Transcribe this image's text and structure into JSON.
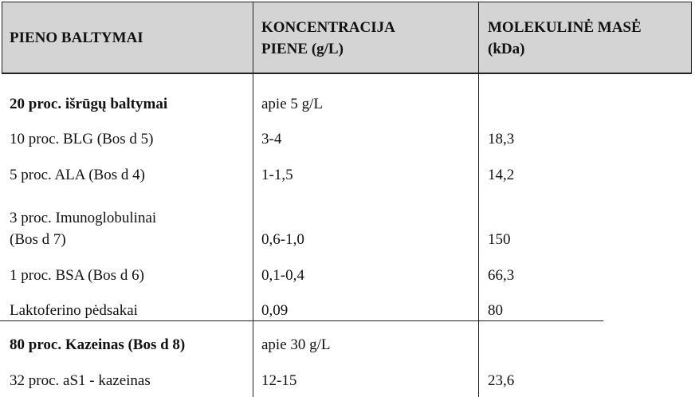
{
  "table": {
    "header": [
      "PIENO BALTYMAI",
      "KONCENTRACIJA\nPIENE (g/L)",
      "MOLEKULINĖ  MASĖ\n(kDa)"
    ],
    "rows": [
      [
        "20 proc. išrūgų baltymai",
        "apie 5 g/L",
        ""
      ],
      [
        "10 proc. BLG (Bos d 5)",
        "3-4",
        "18,3"
      ],
      [
        "5 proc. ALA (Bos d 4)",
        "1-1,5",
        "14,2"
      ],
      [
        "3 proc. Imunoglobulinai\n(Bos d 7)",
        "0,6-1,0",
        "150"
      ],
      [
        "1 proc. BSA (Bos d 6)",
        "0,1-0,4",
        "66,3"
      ],
      [
        "Laktoferino pėdsakai",
        "0,09",
        "80"
      ],
      [
        "80 proc. Kazeinas (Bos d 8)",
        "apie 30 g/L",
        ""
      ],
      [
        "32 proc. aS1 - kazeinas",
        "12-15",
        "23,6"
      ]
    ]
  }
}
